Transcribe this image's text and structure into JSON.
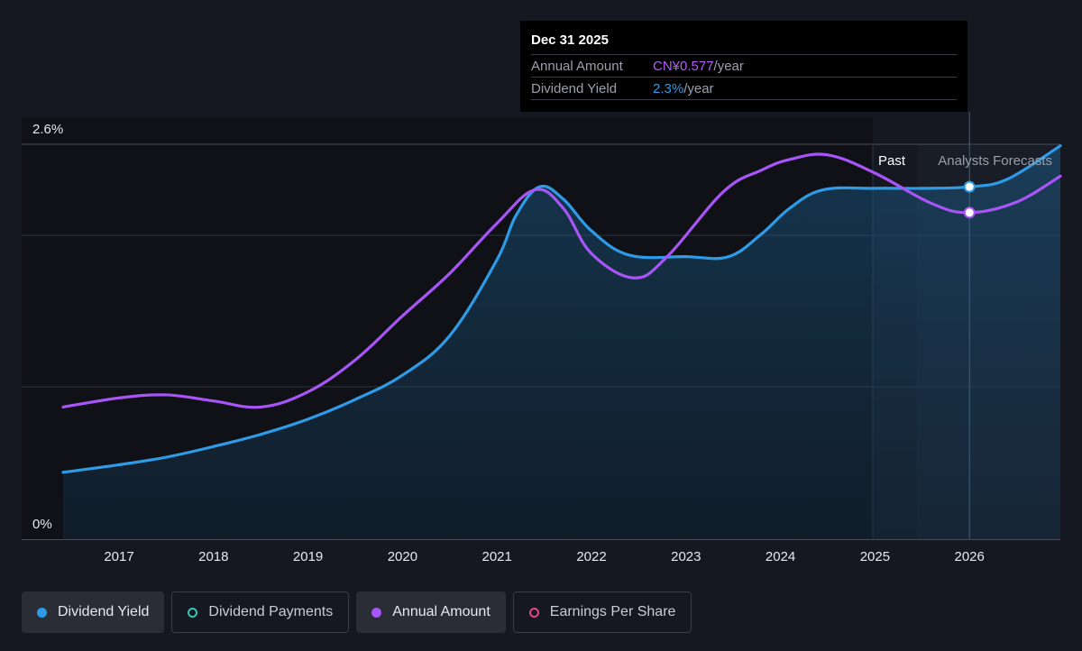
{
  "chart_data": {
    "type": "line",
    "x_ticks": [
      "2017",
      "2018",
      "2019",
      "2020",
      "2021",
      "2022",
      "2023",
      "2024",
      "2025",
      "2026"
    ],
    "y_ticks": [
      "0%",
      "2.6%"
    ],
    "ylim": [
      0,
      2.6
    ],
    "grid": true,
    "regions": {
      "past_label": "Past",
      "forecast_label": "Analysts Forecasts"
    },
    "series": [
      {
        "name": "Dividend Yield",
        "color": "#2f9be6",
        "filled": true,
        "points": [
          [
            2016.4,
            0.44
          ],
          [
            2017.0,
            0.49
          ],
          [
            2017.5,
            0.54
          ],
          [
            2018.0,
            0.61
          ],
          [
            2018.5,
            0.69
          ],
          [
            2019.0,
            0.79
          ],
          [
            2019.5,
            0.92
          ],
          [
            2020.0,
            1.08
          ],
          [
            2020.5,
            1.34
          ],
          [
            2021.0,
            1.84
          ],
          [
            2021.2,
            2.13
          ],
          [
            2021.45,
            2.32
          ],
          [
            2021.7,
            2.24
          ],
          [
            2022.0,
            2.03
          ],
          [
            2022.4,
            1.87
          ],
          [
            2023.0,
            1.86
          ],
          [
            2023.45,
            1.86
          ],
          [
            2023.8,
            2.01
          ],
          [
            2024.1,
            2.18
          ],
          [
            2024.45,
            2.3
          ],
          [
            2025.0,
            2.31
          ],
          [
            2025.5,
            2.31
          ],
          [
            2026.0,
            2.32
          ],
          [
            2026.4,
            2.37
          ],
          [
            2027.0,
            2.59
          ]
        ]
      },
      {
        "name": "Annual Amount",
        "color": "#a855f7",
        "points": [
          [
            2016.4,
            0.87
          ],
          [
            2017.0,
            0.93
          ],
          [
            2017.5,
            0.95
          ],
          [
            2018.0,
            0.91
          ],
          [
            2018.5,
            0.87
          ],
          [
            2019.0,
            0.97
          ],
          [
            2019.5,
            1.18
          ],
          [
            2020.0,
            1.47
          ],
          [
            2020.5,
            1.75
          ],
          [
            2021.0,
            2.08
          ],
          [
            2021.4,
            2.3
          ],
          [
            2021.7,
            2.18
          ],
          [
            2022.0,
            1.88
          ],
          [
            2022.45,
            1.72
          ],
          [
            2022.8,
            1.86
          ],
          [
            2023.4,
            2.29
          ],
          [
            2023.8,
            2.43
          ],
          [
            2024.1,
            2.5
          ],
          [
            2024.5,
            2.53
          ],
          [
            2025.0,
            2.41
          ],
          [
            2025.6,
            2.21
          ],
          [
            2026.0,
            2.15
          ],
          [
            2026.5,
            2.22
          ],
          [
            2027.0,
            2.39
          ]
        ]
      }
    ],
    "highlight": {
      "x": 2026.0,
      "points": [
        {
          "series": "Dividend Yield",
          "y": 2.32
        },
        {
          "series": "Annual Amount",
          "y": 2.15
        }
      ]
    }
  },
  "tooltip": {
    "date": "Dec 31 2025",
    "rows": [
      {
        "key": "Annual Amount",
        "value": "CN¥0.577",
        "unit": "/year"
      },
      {
        "key": "Dividend Yield",
        "value": "2.3%",
        "unit": "/year"
      }
    ]
  },
  "legend": [
    {
      "label": "Dividend Yield",
      "color": "#2f9be6",
      "active": true
    },
    {
      "label": "Dividend Payments",
      "color": "#2fc7b5",
      "active": false
    },
    {
      "label": "Annual Amount",
      "color": "#a855f7",
      "active": true
    },
    {
      "label": "Earnings Per Share",
      "color": "#e0468a",
      "active": false
    }
  ]
}
